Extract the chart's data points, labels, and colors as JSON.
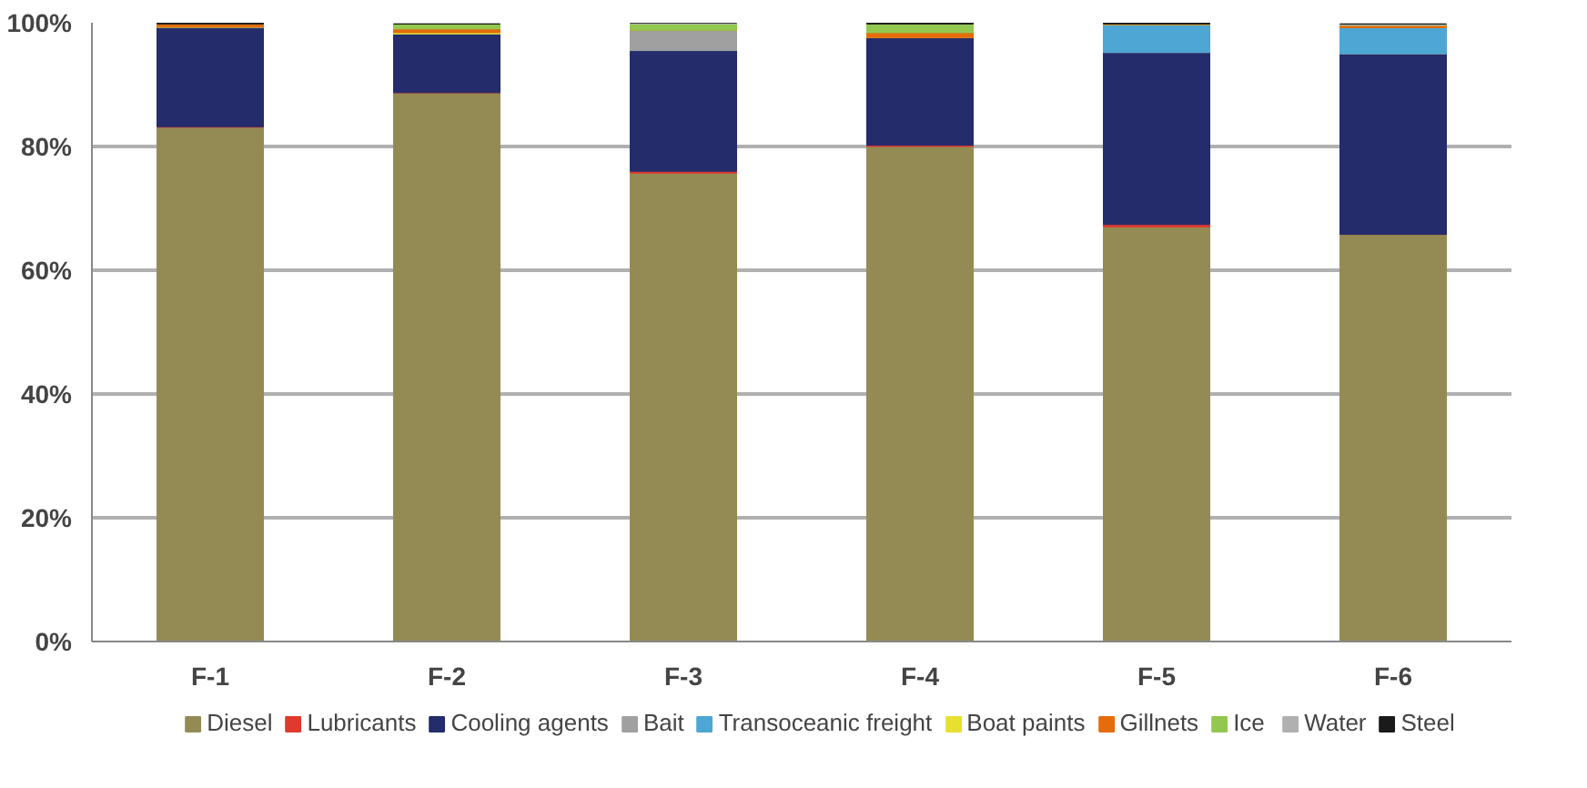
{
  "chart_data": {
    "type": "bar",
    "stacked": true,
    "categories": [
      "F-1",
      "F-2",
      "F-3",
      "F-4",
      "F-5",
      "F-6"
    ],
    "series": [
      {
        "name": "Diesel",
        "color": "#948b54",
        "values": [
          83.1,
          88.7,
          75.7,
          80.0,
          67.0,
          65.8
        ]
      },
      {
        "name": "Lubricants",
        "color": "#e03a2e",
        "values": [
          0.1,
          null,
          0.3,
          0.2,
          0.4,
          null
        ]
      },
      {
        "name": "Cooling agents",
        "color": "#242c6b",
        "values": [
          16.1,
          9.5,
          19.5,
          17.4,
          27.8,
          29.2
        ]
      },
      {
        "name": "Bait",
        "color": "#a0a0a0",
        "values": [
          0,
          0,
          3.3,
          0,
          0,
          0
        ]
      },
      {
        "name": "Transoceanic freight",
        "color": "#4ea6d4",
        "values": [
          0,
          0,
          0,
          0,
          4.5,
          4.2
        ]
      },
      {
        "name": "Boat paints",
        "color": "#e8e030",
        "values": [
          0,
          0.2,
          0,
          0,
          0,
          0
        ]
      },
      {
        "name": "Gillnets",
        "color": "#e46c0a",
        "values": [
          0.5,
          0.6,
          0,
          0.8,
          0.1,
          0.4
        ]
      },
      {
        "name": "Ice",
        "color": "#92c850",
        "values": [
          0,
          0.8,
          1.0,
          1.4,
          0,
          0
        ]
      },
      {
        "name": "Water",
        "color": "#b0b0b0",
        "values": [
          0,
          0,
          0.2,
          0,
          0,
          0.2
        ]
      },
      {
        "name": "Steel",
        "color": "#1a1a1a",
        "values": [
          0.2,
          0,
          0,
          0.2,
          0.2,
          0
        ]
      }
    ],
    "ylim": [
      0,
      100
    ],
    "yticks": [
      {
        "value": 0,
        "label": "0%"
      },
      {
        "value": 20,
        "label": "20%"
      },
      {
        "value": 40,
        "label": "40%"
      },
      {
        "value": 60,
        "label": "60%"
      },
      {
        "value": 80,
        "label": "80%"
      },
      {
        "value": 100,
        "label": "100%"
      }
    ],
    "grid": "y",
    "legend": "bottom"
  }
}
